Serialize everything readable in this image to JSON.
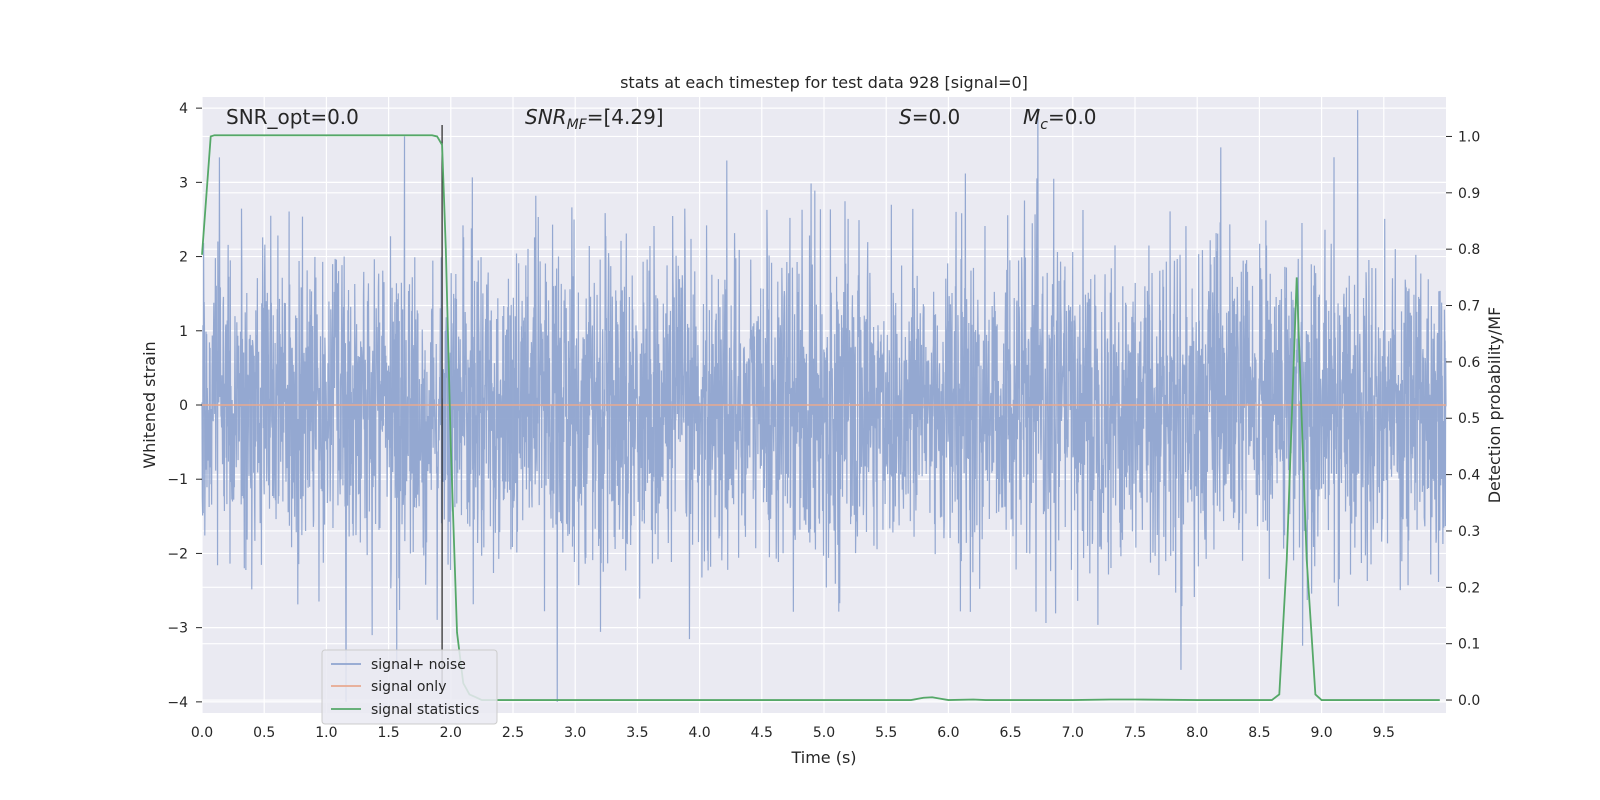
{
  "chart_data": {
    "type": "line",
    "title": "stats at each timestep for test data 928 [signal=0]",
    "xlabel": "Time (s)",
    "ylabel": "Whitened strain",
    "y2label": "Detection probability/MF",
    "xlim": [
      0,
      10
    ],
    "ylim": [
      -4.15,
      4.15
    ],
    "y2lim": [
      -0.023,
      1.07
    ],
    "x_ticks": [
      "0.0",
      "0.5",
      "1.0",
      "1.5",
      "2.0",
      "2.5",
      "3.0",
      "3.5",
      "4.0",
      "4.5",
      "5.0",
      "5.5",
      "6.0",
      "6.5",
      "7.0",
      "7.5",
      "8.0",
      "8.5",
      "9.0",
      "9.5"
    ],
    "y_ticks": [
      "4",
      "3",
      "2",
      "1",
      "0",
      "−1",
      "−2",
      "−3",
      "−4"
    ],
    "y2_ticks": [
      "1.0",
      "0.9",
      "0.8",
      "0.7",
      "0.6",
      "0.5",
      "0.4",
      "0.3",
      "0.2",
      "0.1",
      "0.0"
    ],
    "grid": true,
    "legend_position": "lower-left",
    "annotations": {
      "snr_opt": "SNR_opt=0.0",
      "snr_mf_main": "SNR",
      "snr_mf_sub": "MF",
      "snr_mf_value": "=[4.29]",
      "s_main": "S",
      "s_value": "=0.0",
      "mc_main": "M",
      "mc_sub": "c",
      "mc_value": "=0.0"
    },
    "marker_time": 1.93,
    "series": [
      {
        "name": "signal+ noise",
        "color": "#8fa4cf",
        "kind": "noise",
        "amplitude_typical": 2.1,
        "amplitude_max": 4.0,
        "duration_s": 10
      },
      {
        "name": "signal only",
        "color": "#e8a98f",
        "kind": "flat",
        "value": 0.0
      },
      {
        "name": "signal statistics",
        "color": "#55a868",
        "axis": "right",
        "x": [
          0.0,
          0.07,
          0.1,
          0.2,
          0.5,
          1.0,
          1.5,
          1.85,
          1.89,
          1.93,
          1.96,
          2.0,
          2.05,
          2.1,
          2.15,
          2.2,
          2.25,
          2.35,
          2.5,
          3.0,
          4.0,
          5.0,
          5.5,
          5.7,
          5.8,
          5.87,
          5.92,
          6.0,
          6.2,
          6.3,
          7.0,
          7.3,
          7.5,
          8.0,
          8.5,
          8.6,
          8.66,
          8.72,
          8.8,
          8.88,
          8.95,
          9.0,
          9.2,
          9.5,
          9.95
        ],
        "values": [
          0.79,
          1.0,
          1.002,
          1.002,
          1.002,
          1.002,
          1.002,
          1.002,
          1.0,
          0.985,
          0.8,
          0.45,
          0.12,
          0.03,
          0.01,
          0.005,
          0.0,
          0.0,
          0.0,
          0.0,
          0.0,
          0.0,
          0.0,
          0.0,
          0.004,
          0.005,
          0.003,
          0.0,
          0.001,
          0.0,
          0.0,
          0.001,
          0.001,
          0.0,
          0.0,
          0.0,
          0.01,
          0.25,
          0.75,
          0.25,
          0.01,
          0.0,
          0.0,
          0.0,
          0.0
        ]
      }
    ]
  }
}
